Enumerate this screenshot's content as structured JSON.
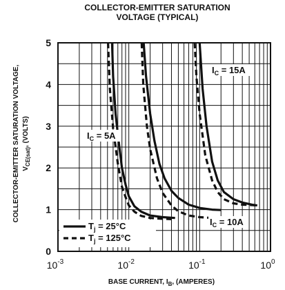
{
  "chart_data": {
    "type": "line",
    "title_line1": "COLLECTOR-EMITTER SATURATION",
    "title_line2": "VOLTAGE (TYPICAL)",
    "ylabel_main": "COLLECTOR-EMITTER SATURATION VOLTAGE,",
    "ylabel_sym_prefix": "V",
    "ylabel_sym_sub": "CE(sat)",
    "ylabel_unit": ", (VOLTS)",
    "xlabel_main": "BASE CURRENT, I",
    "xlabel_sub": "B",
    "xlabel_unit": ", (AMPERES)",
    "x_scale": "log",
    "xlim": [
      0.001,
      1
    ],
    "ylim": [
      0,
      5
    ],
    "x_ticks": [
      {
        "value": 0.001,
        "base": "10",
        "exp": "-3"
      },
      {
        "value": 0.01,
        "base": "10",
        "exp": "-2"
      },
      {
        "value": 0.1,
        "base": "10",
        "exp": "-1"
      },
      {
        "value": 1,
        "base": "10",
        "exp": "0"
      }
    ],
    "y_ticks": [
      {
        "value": 0,
        "label": "0"
      },
      {
        "value": 1,
        "label": "1"
      },
      {
        "value": 2,
        "label": "2"
      },
      {
        "value": 3,
        "label": "3"
      },
      {
        "value": 4,
        "label": "4"
      },
      {
        "value": 5,
        "label": "5"
      }
    ],
    "grid": true,
    "legend_placement": "bottom-left",
    "legend": [
      {
        "style": "solid",
        "prefix": "T",
        "sub": "j",
        "suffix": " = 25°C"
      },
      {
        "style": "dashed",
        "prefix": "T",
        "sub": "j",
        "suffix": " = 125°C"
      }
    ],
    "annotations": [
      {
        "prefix": "I",
        "sub": "C",
        "suffix": " = 5A"
      },
      {
        "prefix": "I",
        "sub": "C",
        "suffix": " = 10A"
      },
      {
        "prefix": "I",
        "sub": "C",
        "suffix": " = 15A"
      }
    ],
    "series": [
      {
        "curve": "IC=5A, Tj=25C",
        "style": "solid",
        "points": [
          [
            0.0058,
            5.0
          ],
          [
            0.006,
            4.2
          ],
          [
            0.0065,
            3.3
          ],
          [
            0.007,
            2.8
          ],
          [
            0.008,
            2.0
          ],
          [
            0.009,
            1.6
          ],
          [
            0.01,
            1.32
          ],
          [
            0.012,
            1.08
          ],
          [
            0.015,
            0.95
          ],
          [
            0.02,
            0.86
          ],
          [
            0.03,
            0.82
          ],
          [
            0.045,
            0.8
          ]
        ]
      },
      {
        "curve": "IC=5A, Tj=125C",
        "style": "dashed",
        "points": [
          [
            0.0051,
            5.0
          ],
          [
            0.0054,
            3.9
          ],
          [
            0.006,
            2.95
          ],
          [
            0.007,
            2.1
          ],
          [
            0.008,
            1.55
          ],
          [
            0.009,
            1.3
          ],
          [
            0.01,
            1.1
          ],
          [
            0.012,
            0.95
          ],
          [
            0.015,
            0.85
          ],
          [
            0.02,
            0.8
          ],
          [
            0.03,
            0.78
          ],
          [
            0.045,
            0.77
          ]
        ]
      },
      {
        "curve": "IC=10A, Tj=25C",
        "style": "solid",
        "points": [
          [
            0.0162,
            5.0
          ],
          [
            0.0175,
            4.2
          ],
          [
            0.02,
            3.3
          ],
          [
            0.023,
            2.65
          ],
          [
            0.027,
            2.1
          ],
          [
            0.032,
            1.75
          ],
          [
            0.04,
            1.45
          ],
          [
            0.05,
            1.28
          ],
          [
            0.07,
            1.12
          ],
          [
            0.1,
            1.04
          ],
          [
            0.15,
            1.0
          ],
          [
            0.2,
            0.99
          ]
        ]
      },
      {
        "curve": "IC=10A, Tj=125C",
        "style": "dashed",
        "points": [
          [
            0.0152,
            5.0
          ],
          [
            0.016,
            4.0
          ],
          [
            0.018,
            3.0
          ],
          [
            0.02,
            2.45
          ],
          [
            0.025,
            1.75
          ],
          [
            0.03,
            1.4
          ],
          [
            0.04,
            1.1
          ],
          [
            0.05,
            0.96
          ],
          [
            0.07,
            0.86
          ],
          [
            0.1,
            0.82
          ],
          [
            0.15,
            0.8
          ],
          [
            0.2,
            0.79
          ]
        ]
      },
      {
        "curve": "IC=15A, Tj=25C",
        "style": "solid",
        "points": [
          [
            0.1,
            5.0
          ],
          [
            0.11,
            3.9
          ],
          [
            0.125,
            3.0
          ],
          [
            0.15,
            2.15
          ],
          [
            0.18,
            1.7
          ],
          [
            0.22,
            1.42
          ],
          [
            0.3,
            1.25
          ],
          [
            0.4,
            1.17
          ],
          [
            0.55,
            1.12
          ],
          [
            0.65,
            1.1
          ]
        ]
      },
      {
        "curve": "IC=15A, Tj=125C",
        "style": "dashed",
        "points": [
          [
            0.085,
            5.0
          ],
          [
            0.09,
            4.2
          ],
          [
            0.1,
            3.3
          ],
          [
            0.12,
            2.3
          ],
          [
            0.15,
            1.7
          ],
          [
            0.18,
            1.42
          ],
          [
            0.22,
            1.25
          ],
          [
            0.3,
            1.15
          ],
          [
            0.4,
            1.12
          ],
          [
            0.55,
            1.11
          ],
          [
            0.65,
            1.1
          ]
        ]
      }
    ]
  }
}
